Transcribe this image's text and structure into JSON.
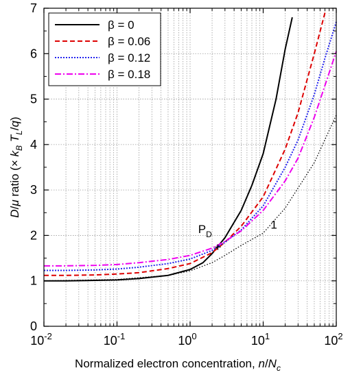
{
  "chart_data": {
    "type": "line",
    "title": "",
    "xlabel": "Normalized electron concentration, n/N_c",
    "ylabel": "D/μ ratio (× k_B T_L/q)",
    "xscale": "log",
    "xlim": [
      0.01,
      100
    ],
    "ylim": [
      0,
      7
    ],
    "x_ticks": [
      {
        "base": "10",
        "exp": "-2"
      },
      {
        "base": "10",
        "exp": "-1"
      },
      {
        "base": "10",
        "exp": "0"
      },
      {
        "base": "10",
        "exp": "1"
      },
      {
        "base": "10",
        "exp": "2"
      }
    ],
    "y_ticks": [
      "0",
      "1",
      "2",
      "3",
      "4",
      "5",
      "6",
      "7"
    ],
    "grid": true,
    "legend_position": "top-left",
    "series": [
      {
        "name": "β = 0",
        "color": "#000000",
        "style": "solid",
        "x": [
          0.01,
          0.02,
          0.05,
          0.1,
          0.2,
          0.5,
          1,
          1.5,
          2,
          3,
          5,
          7,
          10,
          15,
          20,
          25
        ],
        "y": [
          1.0,
          1.0,
          1.01,
          1.02,
          1.05,
          1.12,
          1.25,
          1.4,
          1.6,
          1.95,
          2.55,
          3.1,
          3.8,
          5.0,
          6.1,
          6.8
        ]
      },
      {
        "name": "β = 0.06",
        "color": "#dd0000",
        "style": "dashed",
        "x": [
          0.01,
          0.02,
          0.05,
          0.1,
          0.2,
          0.5,
          1,
          2,
          3,
          5,
          10,
          20,
          30,
          50,
          70
        ],
        "y": [
          1.12,
          1.12,
          1.13,
          1.15,
          1.18,
          1.27,
          1.38,
          1.62,
          1.85,
          2.2,
          2.85,
          3.9,
          4.7,
          6.0,
          6.9
        ]
      },
      {
        "name": "β = 0.12",
        "color": "#2222ee",
        "style": "dotted",
        "x": [
          0.01,
          0.02,
          0.05,
          0.1,
          0.2,
          0.5,
          1,
          2,
          3,
          5,
          10,
          20,
          30,
          50,
          70,
          100
        ],
        "y": [
          1.23,
          1.23,
          1.24,
          1.26,
          1.3,
          1.38,
          1.48,
          1.67,
          1.85,
          2.12,
          2.65,
          3.5,
          4.1,
          5.1,
          5.9,
          6.7
        ]
      },
      {
        "name": "β = 0.18",
        "color": "#ee00ee",
        "style": "dashdot",
        "x": [
          0.01,
          0.02,
          0.05,
          0.1,
          0.2,
          0.5,
          1,
          2,
          3,
          5,
          10,
          20,
          30,
          50,
          70,
          100
        ],
        "y": [
          1.33,
          1.33,
          1.34,
          1.36,
          1.4,
          1.47,
          1.56,
          1.72,
          1.87,
          2.1,
          2.55,
          3.2,
          3.7,
          4.6,
          5.3,
          6.05
        ]
      },
      {
        "name": "",
        "color": "#000000",
        "style": "dotted-thin",
        "x": [
          0.01,
          0.1,
          0.5,
          1,
          2,
          3,
          5,
          10,
          20,
          50,
          100
        ],
        "y": [
          1.0,
          1.03,
          1.12,
          1.22,
          1.4,
          1.56,
          1.78,
          2.05,
          2.6,
          3.6,
          4.65
        ]
      }
    ],
    "annotations": [
      {
        "text": "P",
        "sub": "D",
        "x": 1.6,
        "y": 2.05
      },
      {
        "text": "1",
        "x": 14,
        "y": 2.15
      }
    ],
    "marker": {
      "symbol": "+",
      "x": 2.4,
      "y": 1.75
    }
  }
}
